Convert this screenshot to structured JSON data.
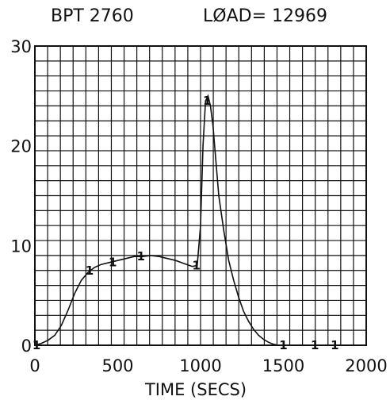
{
  "header": {
    "bpt": "BPT 2760",
    "load": "LØAD= 12969"
  },
  "chart_data": {
    "type": "line",
    "title": "",
    "xlabel": "TIME (SECS)",
    "ylabel": "",
    "xlim": [
      0,
      2000
    ],
    "ylim": [
      0,
      30
    ],
    "grid": true,
    "x_ticks": [
      {
        "value": 0,
        "label": "0"
      },
      {
        "value": 500,
        "label": "500"
      },
      {
        "value": 1000,
        "label": "1000"
      },
      {
        "value": 1500,
        "label": "1500"
      },
      {
        "value": 2000,
        "label": "2000"
      }
    ],
    "y_ticks": [
      {
        "value": 0,
        "label": "0"
      },
      {
        "value": 10,
        "label": "10"
      },
      {
        "value": 20,
        "label": "20"
      },
      {
        "value": 30,
        "label": "30"
      }
    ],
    "series": [
      {
        "marker_label": "1",
        "x": [
          0,
          40,
          80,
          120,
          160,
          200,
          240,
          280,
          320,
          360,
          400,
          450,
          500,
          550,
          600,
          650,
          700,
          750,
          800,
          850,
          900,
          950,
          980,
          1000,
          1015,
          1030,
          1045,
          1060,
          1075,
          1090,
          1110,
          1140,
          1170,
          1200,
          1230,
          1260,
          1290,
          1320,
          1350,
          1380,
          1410,
          1440,
          1470,
          1500,
          1550,
          1600,
          1700,
          1800,
          1900,
          2000
        ],
        "y": [
          0,
          0.2,
          0.5,
          1.0,
          2.0,
          3.5,
          5.2,
          6.5,
          7.3,
          7.8,
          8.1,
          8.3,
          8.5,
          8.7,
          8.9,
          8.9,
          9.0,
          8.9,
          8.7,
          8.5,
          8.2,
          7.9,
          8.0,
          12.0,
          20.0,
          24.5,
          25.0,
          24.0,
          22.0,
          19.0,
          15.0,
          11.5,
          8.5,
          6.5,
          4.8,
          3.4,
          2.4,
          1.6,
          1.0,
          0.6,
          0.3,
          0.1,
          0.0,
          0.0,
          0.0,
          0.0,
          0.0,
          0.0,
          0.0,
          0.0
        ]
      }
    ],
    "markers": [
      {
        "x": 10,
        "y": 0.0
      },
      {
        "x": 330,
        "y": 7.5
      },
      {
        "x": 470,
        "y": 8.3
      },
      {
        "x": 640,
        "y": 8.9
      },
      {
        "x": 975,
        "y": 8.0
      },
      {
        "x": 1040,
        "y": 24.5
      },
      {
        "x": 1500,
        "y": 0.0
      },
      {
        "x": 1690,
        "y": 0.0
      },
      {
        "x": 1810,
        "y": 0.0
      }
    ]
  }
}
